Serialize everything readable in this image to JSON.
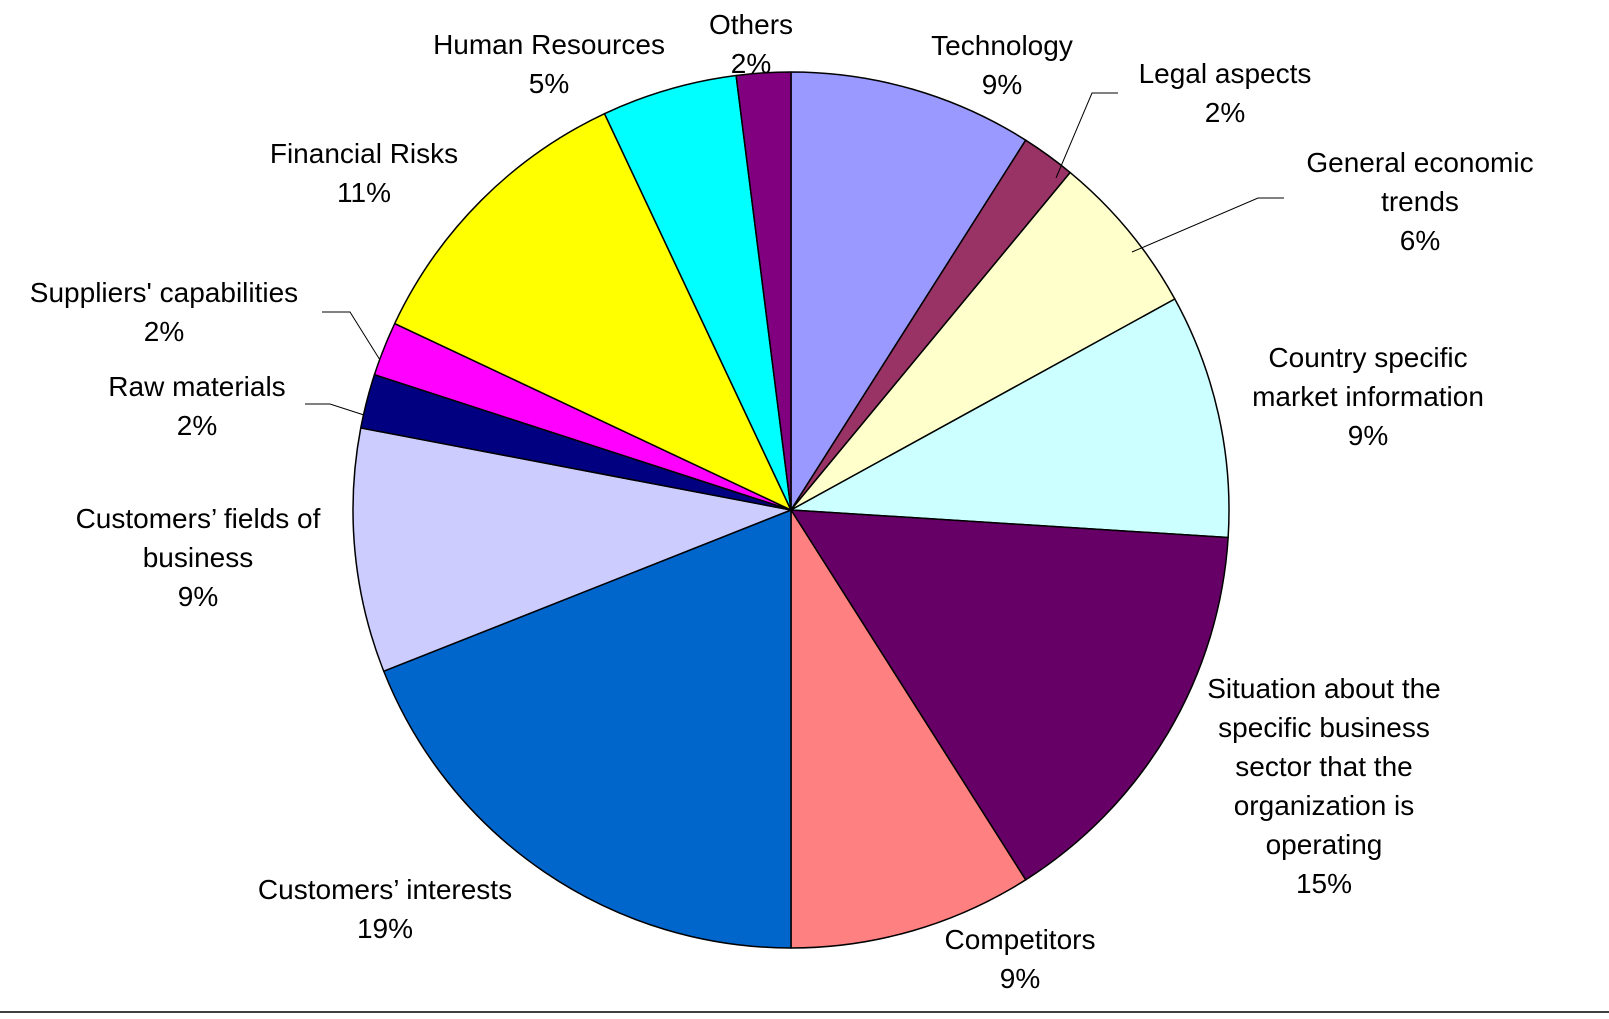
{
  "chart_data": {
    "type": "pie",
    "start_angle_deg": 90,
    "direction": "clockwise",
    "legend": "none",
    "slices": [
      {
        "label_lines": [
          "Technology"
        ],
        "value": 9,
        "value_label": "9%",
        "color": "#9999FF"
      },
      {
        "label_lines": [
          "Legal aspects"
        ],
        "value": 2,
        "value_label": "2%",
        "color": "#993366"
      },
      {
        "label_lines": [
          "General economic",
          "trends"
        ],
        "value": 6,
        "value_label": "6%",
        "color": "#FFFFCC"
      },
      {
        "label_lines": [
          "Country specific",
          "market information"
        ],
        "value": 9,
        "value_label": "9%",
        "color": "#CCFFFF"
      },
      {
        "label_lines": [
          "Situation about the",
          "specific business",
          "sector that the",
          "organization is",
          "operating"
        ],
        "value": 15,
        "value_label": "15%",
        "color": "#660066"
      },
      {
        "label_lines": [
          "Competitors"
        ],
        "value": 9,
        "value_label": "9%",
        "color": "#FF8080"
      },
      {
        "label_lines": [
          "Customers’ interests"
        ],
        "value": 19,
        "value_label": "19%",
        "color": "#0066CC"
      },
      {
        "label_lines": [
          "Customers’ fields of",
          "business"
        ],
        "value": 9,
        "value_label": "9%",
        "color": "#CCCCFF"
      },
      {
        "label_lines": [
          "Raw materials"
        ],
        "value": 2,
        "value_label": "2%",
        "color": "#000080"
      },
      {
        "label_lines": [
          "Suppliers' capabilities"
        ],
        "value": 2,
        "value_label": "2%",
        "color": "#FF00FF"
      },
      {
        "label_lines": [
          "Financial Risks"
        ],
        "value": 11,
        "value_label": "11%",
        "color": "#FFFF00"
      },
      {
        "label_lines": [
          "Human Resources"
        ],
        "value": 5,
        "value_label": "5%",
        "color": "#00FFFF"
      },
      {
        "label_lines": [
          "Others"
        ],
        "value": 2,
        "value_label": "2%",
        "color": "#800080"
      }
    ]
  }
}
